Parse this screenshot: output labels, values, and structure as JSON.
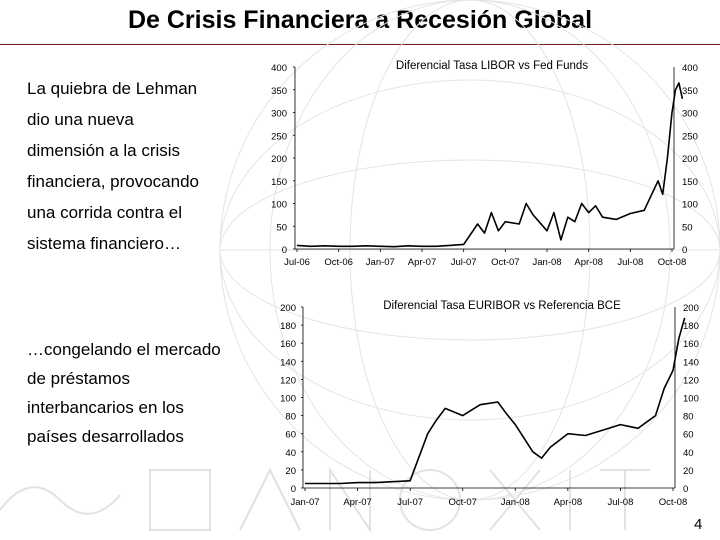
{
  "page": {
    "title": "De Crisis Financiera a Recesión Global",
    "page_number": "4"
  },
  "text_top": [
    "La quiebra de Lehman",
    "dio una nueva",
    "dimensión a la crisis",
    "financiera, provocando",
    "una corrida contra el",
    "sistema financiero…"
  ],
  "text_bottom": [
    "…congelando el mercado",
    "de préstamos",
    "interbancarios en los",
    "países desarrollados"
  ],
  "colors": {
    "line": "#000000",
    "title_rule": "#7a1f1f"
  },
  "chart_data": [
    {
      "type": "line",
      "title": "Diferencial Tasa LIBOR vs Fed Funds",
      "x_ticks": [
        "Jul-06",
        "Oct-06",
        "Jan-07",
        "Apr-07",
        "Jul-07",
        "Oct-07",
        "Jan-08",
        "Apr-08",
        "Jul-08",
        "Oct-08"
      ],
      "y_ticks": [
        0,
        50,
        100,
        150,
        200,
        250,
        300,
        350,
        400
      ],
      "ylim": [
        0,
        400
      ],
      "grid": false,
      "series": [
        {
          "points": [
            [
              "Jul-06",
              8
            ],
            [
              "Aug-06",
              6
            ],
            [
              "Sep-06",
              7
            ],
            [
              "Oct-06",
              6
            ],
            [
              "Nov-06",
              6
            ],
            [
              "Dec-06",
              7
            ],
            [
              "Jan-07",
              6
            ],
            [
              "Feb-07",
              5
            ],
            [
              "Mar-07",
              7
            ],
            [
              "Apr-07",
              6
            ],
            [
              "May-07",
              6
            ],
            [
              "Jun-07",
              8
            ],
            [
              "Jul-07",
              10
            ],
            [
              "Aug-07",
              55
            ],
            [
              "Aug-07",
              35
            ],
            [
              "Sep-07",
              80
            ],
            [
              "Sep-07",
              40
            ],
            [
              "Oct-07",
              60
            ],
            [
              "Nov-07",
              55
            ],
            [
              "Nov-07",
              100
            ],
            [
              "Dec-07",
              75
            ],
            [
              "Jan-08",
              40
            ],
            [
              "Jan-08",
              80
            ],
            [
              "Feb-08",
              20
            ],
            [
              "Feb-08",
              70
            ],
            [
              "Mar-08",
              60
            ],
            [
              "Mar-08",
              100
            ],
            [
              "Apr-08",
              80
            ],
            [
              "Apr-08",
              95
            ],
            [
              "May-08",
              70
            ],
            [
              "Jun-08",
              65
            ],
            [
              "Jul-08",
              78
            ],
            [
              "Aug-08",
              85
            ],
            [
              "Sep-08",
              150
            ],
            [
              "Sep-08",
              120
            ],
            [
              "Sep-08",
              200
            ],
            [
              "Oct-08",
              300
            ],
            [
              "Oct-08",
              350
            ],
            [
              "Oct-08",
              365
            ],
            [
              "Oct-08",
              330
            ]
          ]
        }
      ]
    },
    {
      "type": "line",
      "title": "Diferencial Tasa EURIBOR vs Referencia BCE",
      "x_ticks": [
        "Jan-07",
        "Apr-07",
        "Jul-07",
        "Oct-07",
        "Jan-08",
        "Apr-08",
        "Jul-08",
        "Oct-08"
      ],
      "y_ticks": [
        0,
        20,
        40,
        60,
        80,
        100,
        120,
        140,
        160,
        180,
        200
      ],
      "ylim": [
        0,
        200
      ],
      "grid": false,
      "series": [
        {
          "points": [
            [
              "Jan-07",
              5
            ],
            [
              "Feb-07",
              5
            ],
            [
              "Mar-07",
              5
            ],
            [
              "Apr-07",
              6
            ],
            [
              "May-07",
              6
            ],
            [
              "Jun-07",
              7
            ],
            [
              "Jul-07",
              8
            ],
            [
              "Aug-07",
              60
            ],
            [
              "Aug-07",
              75
            ],
            [
              "Sep-07",
              88
            ],
            [
              "Oct-07",
              80
            ],
            [
              "Nov-07",
              92
            ],
            [
              "Dec-07",
              95
            ],
            [
              "Dec-07",
              82
            ],
            [
              "Jan-08",
              70
            ],
            [
              "Feb-08",
              40
            ],
            [
              "Feb-08",
              33
            ],
            [
              "Mar-08",
              45
            ],
            [
              "Apr-08",
              60
            ],
            [
              "May-08",
              58
            ],
            [
              "Jun-08",
              64
            ],
            [
              "Jul-08",
              70
            ],
            [
              "Aug-08",
              66
            ],
            [
              "Sep-08",
              80
            ],
            [
              "Sep-08",
              110
            ],
            [
              "Oct-08",
              130
            ],
            [
              "Oct-08",
              165
            ],
            [
              "Oct-08",
              188
            ]
          ]
        }
      ]
    }
  ]
}
